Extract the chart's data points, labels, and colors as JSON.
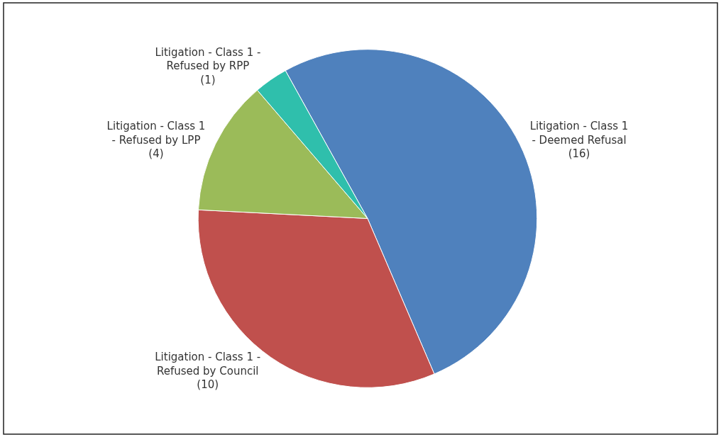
{
  "chart_data": {
    "type": "pie",
    "categories": [
      "Litigation - Class 1\n- Deemed Refusal",
      "Litigation - Class 1 -\nRefused by Council",
      "Litigation - Class 1\n- Refused by LPP",
      "Litigation - Class 1 -\nRefused by RPP"
    ],
    "values": [
      16,
      10,
      4,
      1
    ],
    "colors": [
      "#4f81bd",
      "#c0504d",
      "#9bbb59",
      "#2fbfac"
    ],
    "value_labels": [
      "(16)",
      "(10)",
      "(4)",
      "(1)"
    ],
    "legend": false
  }
}
